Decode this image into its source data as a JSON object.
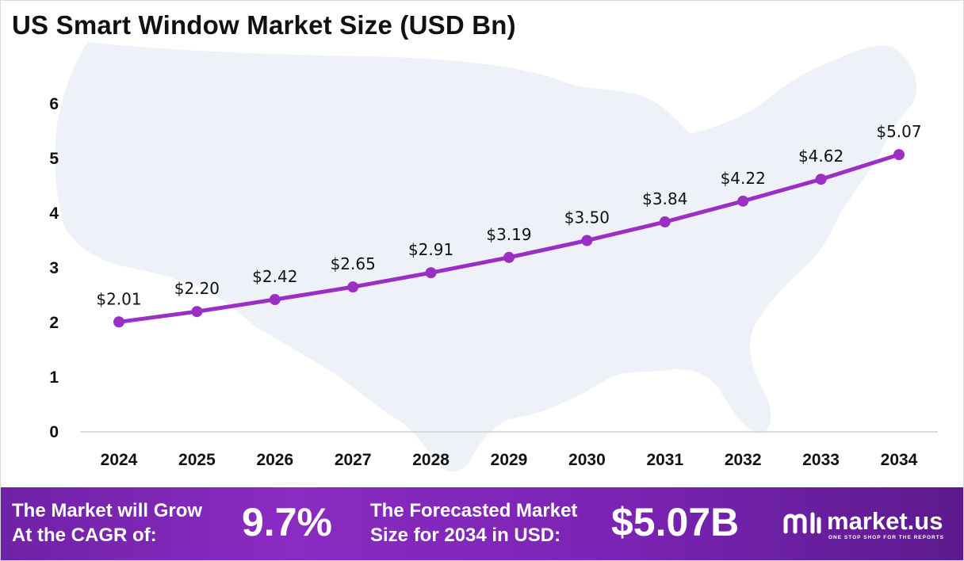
{
  "title": "US Smart Window Market Size (USD Bn)",
  "chart_data": {
    "type": "line",
    "title": "US Smart Window Market Size (USD Bn)",
    "categories": [
      "2024",
      "2025",
      "2026",
      "2027",
      "2028",
      "2029",
      "2030",
      "2031",
      "2032",
      "2033",
      "2034"
    ],
    "values": [
      2.01,
      2.2,
      2.42,
      2.65,
      2.91,
      3.19,
      3.5,
      3.84,
      4.22,
      4.62,
      5.07
    ],
    "data_labels": [
      "$2.01",
      "$2.20",
      "$2.42",
      "$2.65",
      "$2.91",
      "$3.19",
      "$3.50",
      "$3.84",
      "$4.22",
      "$4.62",
      "$5.07"
    ],
    "yticks": [
      "0",
      "1",
      "2",
      "3",
      "4",
      "5",
      "6"
    ],
    "ylim": [
      0,
      6
    ],
    "grid": false,
    "background": "us-map-silhouette"
  },
  "colors": {
    "line": "#9b2fc3",
    "marker": "#9b2fc3",
    "map": "#eef2f8",
    "footer": "#7a24b3"
  },
  "footer": {
    "cagr_label_line1": "The Market will Grow",
    "cagr_label_line2": "At the CAGR of:",
    "cagr_value": "9.7%",
    "forecast_label_line1": "The Forecasted Market",
    "forecast_label_line2": "Size for 2034 in USD:",
    "forecast_value": "$5.07B"
  },
  "logo": {
    "icon": "market-us-logo-icon",
    "wordmark": "market.us",
    "tagline": "ONE STOP SHOP FOR THE REPORTS"
  }
}
